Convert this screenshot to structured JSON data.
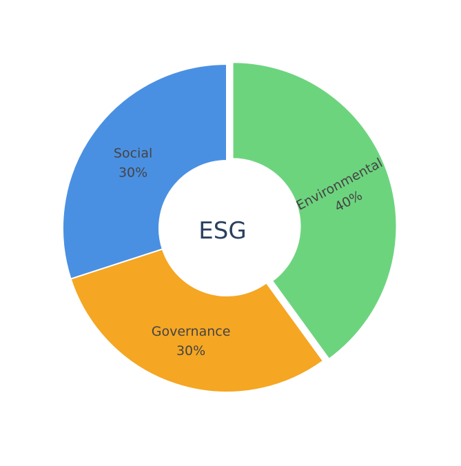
{
  "chart_data": {
    "type": "pie",
    "center_label": "ESG",
    "slices": [
      {
        "label": "Environmental",
        "value": 40,
        "value_label": "40%",
        "color": "#6dd47e",
        "pulled": true
      },
      {
        "label": "Governance",
        "value": 30,
        "value_label": "30%",
        "color": "#f5a623",
        "pulled": false
      },
      {
        "label": "Social",
        "value": 30,
        "value_label": "30%",
        "color": "#4a90e2",
        "pulled": false
      }
    ],
    "hole": true,
    "legend": "none",
    "label_color": "#444444",
    "center_color": "#2a3f5f"
  }
}
